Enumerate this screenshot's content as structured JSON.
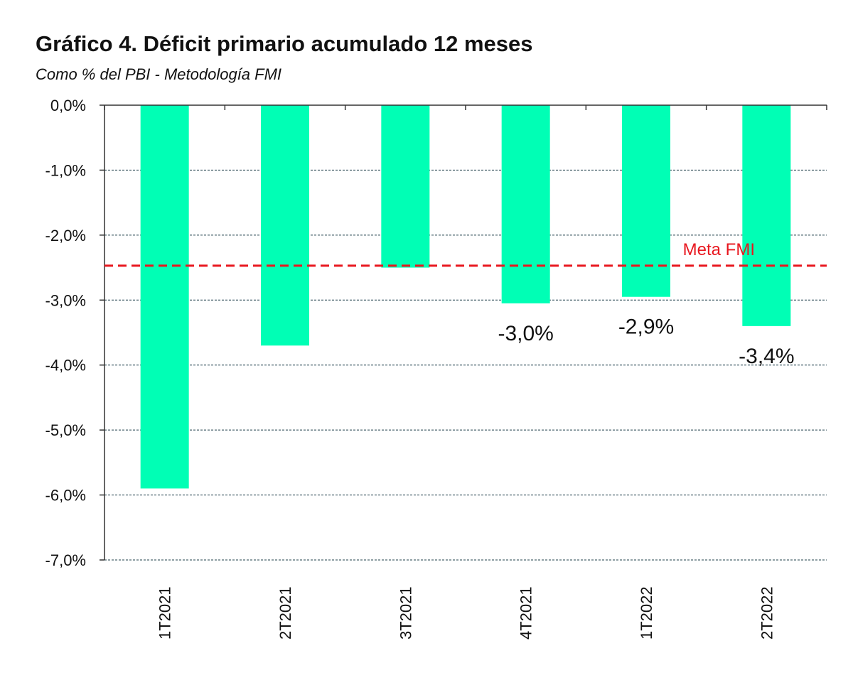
{
  "chart_data": {
    "type": "bar",
    "title": "Gráfico 4. Déficit primario acumulado 12 meses",
    "subtitle": "Como % del PBI - Metodología FMI",
    "categories": [
      "1T2021",
      "2T2021",
      "3T2021",
      "4T2021",
      "1T2022",
      "2T2022"
    ],
    "values": [
      -5.9,
      -3.7,
      -2.5,
      -3.05,
      -2.95,
      -3.4
    ],
    "data_labels": [
      "",
      "",
      "",
      "-3,0%",
      "-2,9%",
      "-3,4%"
    ],
    "ylim": [
      -7.0,
      0.0
    ],
    "yticks": [
      0,
      -1,
      -2,
      -3,
      -4,
      -5,
      -6,
      -7
    ],
    "ytick_labels": [
      "0,0%",
      "-1,0%",
      "-2,0%",
      "-3,0%",
      "-4,0%",
      "-5,0%",
      "-6,0%",
      "-7,0%"
    ],
    "reference_line": {
      "label": "Meta FMI",
      "value": -2.47,
      "color": "#e8171f",
      "style": "dashed"
    },
    "bar_color": "#00ffb5",
    "grid": true,
    "grid_style": "dashed"
  }
}
